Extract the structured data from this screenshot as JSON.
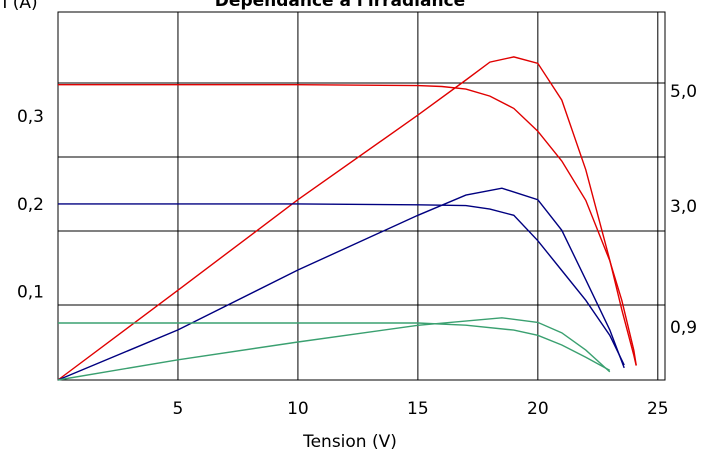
{
  "chart_data": {
    "type": "line",
    "title": "Dépendance à l'irradiance",
    "y_label": "I (A)",
    "x_label": "Tension (V)",
    "xlim": [
      0,
      25.3
    ],
    "xticks": [
      5,
      10,
      15,
      20,
      25
    ],
    "ylim": [
      0,
      0.42
    ],
    "yticks": [
      {
        "value": 0.1,
        "label": "0,1"
      },
      {
        "value": 0.2,
        "label": "0,2"
      },
      {
        "value": 0.3,
        "label": "0,3"
      }
    ],
    "y2lim": [
      0,
      6.39
    ],
    "y2ticks": [
      {
        "value": 0.9,
        "label": "0,9"
      },
      {
        "value": 3.0,
        "label": "3,0"
      },
      {
        "value": 5.0,
        "label": "5,0"
      }
    ],
    "grid": true,
    "series": [
      {
        "color": "#e00000",
        "x": [
          0,
          5,
          10,
          15,
          16,
          17,
          18,
          19,
          20,
          21,
          22,
          23,
          23.5,
          24,
          24.1
        ],
        "values": [
          0.337,
          0.337,
          0.337,
          0.336,
          0.335,
          0.332,
          0.324,
          0.31,
          0.284,
          0.25,
          0.205,
          0.136,
          0.091,
          0.034,
          0.017
        ]
      },
      {
        "color": "#e00000",
        "axis": "y2",
        "x": [
          0,
          5,
          10,
          15,
          17,
          18,
          19,
          20,
          21,
          22,
          23,
          23.5,
          24,
          24.1
        ],
        "values": [
          0,
          1.56,
          3.13,
          4.6,
          5.21,
          5.52,
          5.61,
          5.5,
          4.86,
          3.65,
          2.08,
          1.22,
          0.43,
          0.25
        ]
      },
      {
        "color": "#000080",
        "x": [
          0,
          5,
          10,
          15,
          17,
          18,
          19,
          20,
          21,
          22,
          23,
          23.6
        ],
        "values": [
          0.201,
          0.201,
          0.201,
          0.2,
          0.199,
          0.195,
          0.188,
          0.159,
          0.125,
          0.091,
          0.051,
          0.017
        ]
      },
      {
        "color": "#000080",
        "axis": "y2",
        "x": [
          0,
          5,
          10,
          15,
          17,
          18.5,
          20,
          21,
          22,
          23,
          23.6
        ],
        "values": [
          0,
          0.87,
          1.91,
          2.86,
          3.21,
          3.33,
          3.13,
          2.6,
          1.74,
          0.87,
          0.21
        ]
      },
      {
        "color": "#3aa070",
        "x": [
          0,
          5,
          10,
          15,
          17,
          19,
          20,
          21,
          22,
          23
        ],
        "values": [
          0.065,
          0.065,
          0.065,
          0.065,
          0.0625,
          0.057,
          0.051,
          0.04,
          0.026,
          0.011
        ]
      },
      {
        "color": "#3aa070",
        "axis": "y2",
        "x": [
          0,
          5,
          10,
          15,
          18.5,
          20,
          21,
          22,
          23
        ],
        "values": [
          0,
          0.35,
          0.66,
          0.95,
          1.08,
          1.0,
          0.82,
          0.52,
          0.14
        ]
      }
    ]
  }
}
